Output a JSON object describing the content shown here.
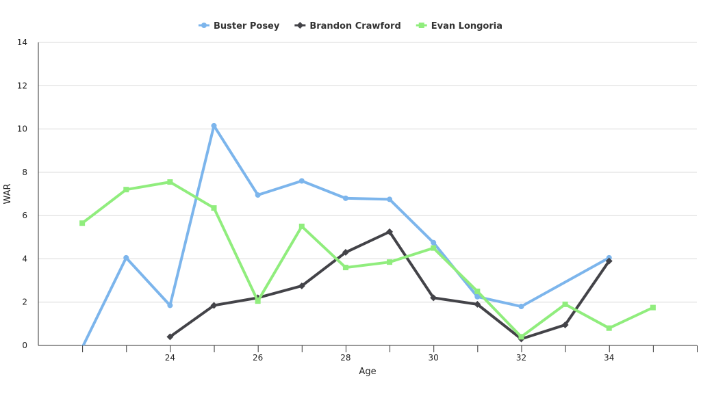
{
  "chart_data": {
    "type": "line",
    "xlabel": "Age",
    "ylabel": "WAR",
    "xlim": [
      21,
      36
    ],
    "ylim": [
      0,
      14
    ],
    "x_ticks": [
      24,
      26,
      28,
      30,
      32,
      34
    ],
    "y_ticks": [
      0,
      2,
      4,
      6,
      8,
      10,
      12,
      14
    ],
    "grid": "horizontal",
    "legend_position": "top-center",
    "series": [
      {
        "name": "Buster Posey",
        "color": "#7cb5ec",
        "marker": "circle",
        "points": [
          [
            22,
            -0.1
          ],
          [
            23,
            4.05
          ],
          [
            24,
            1.85
          ],
          [
            25,
            10.15
          ],
          [
            26,
            6.95
          ],
          [
            27,
            7.6
          ],
          [
            28,
            6.8
          ],
          [
            29,
            6.75
          ],
          [
            30,
            4.75
          ],
          [
            31,
            2.25
          ],
          [
            32,
            1.8
          ],
          [
            34,
            4.05
          ]
        ]
      },
      {
        "name": "Brandon Crawford",
        "color": "#434348",
        "marker": "diamond",
        "points": [
          [
            24,
            0.4
          ],
          [
            25,
            1.85
          ],
          [
            26,
            2.2
          ],
          [
            27,
            2.75
          ],
          [
            28,
            4.3
          ],
          [
            29,
            5.25
          ],
          [
            30,
            2.2
          ],
          [
            31,
            1.9
          ],
          [
            32,
            0.3
          ],
          [
            33,
            0.95
          ],
          [
            34,
            3.9
          ]
        ]
      },
      {
        "name": "Evan Longoria",
        "color": "#90ed7d",
        "marker": "square",
        "points": [
          [
            22,
            5.65
          ],
          [
            23,
            7.2
          ],
          [
            24,
            7.55
          ],
          [
            25,
            6.35
          ],
          [
            26,
            2.05
          ],
          [
            27,
            5.5
          ],
          [
            28,
            3.6
          ],
          [
            29,
            3.85
          ],
          [
            30,
            4.5
          ],
          [
            31,
            2.5
          ],
          [
            32,
            0.4
          ],
          [
            33,
            1.9
          ],
          [
            34,
            0.8
          ],
          [
            35,
            1.75
          ]
        ]
      }
    ]
  }
}
